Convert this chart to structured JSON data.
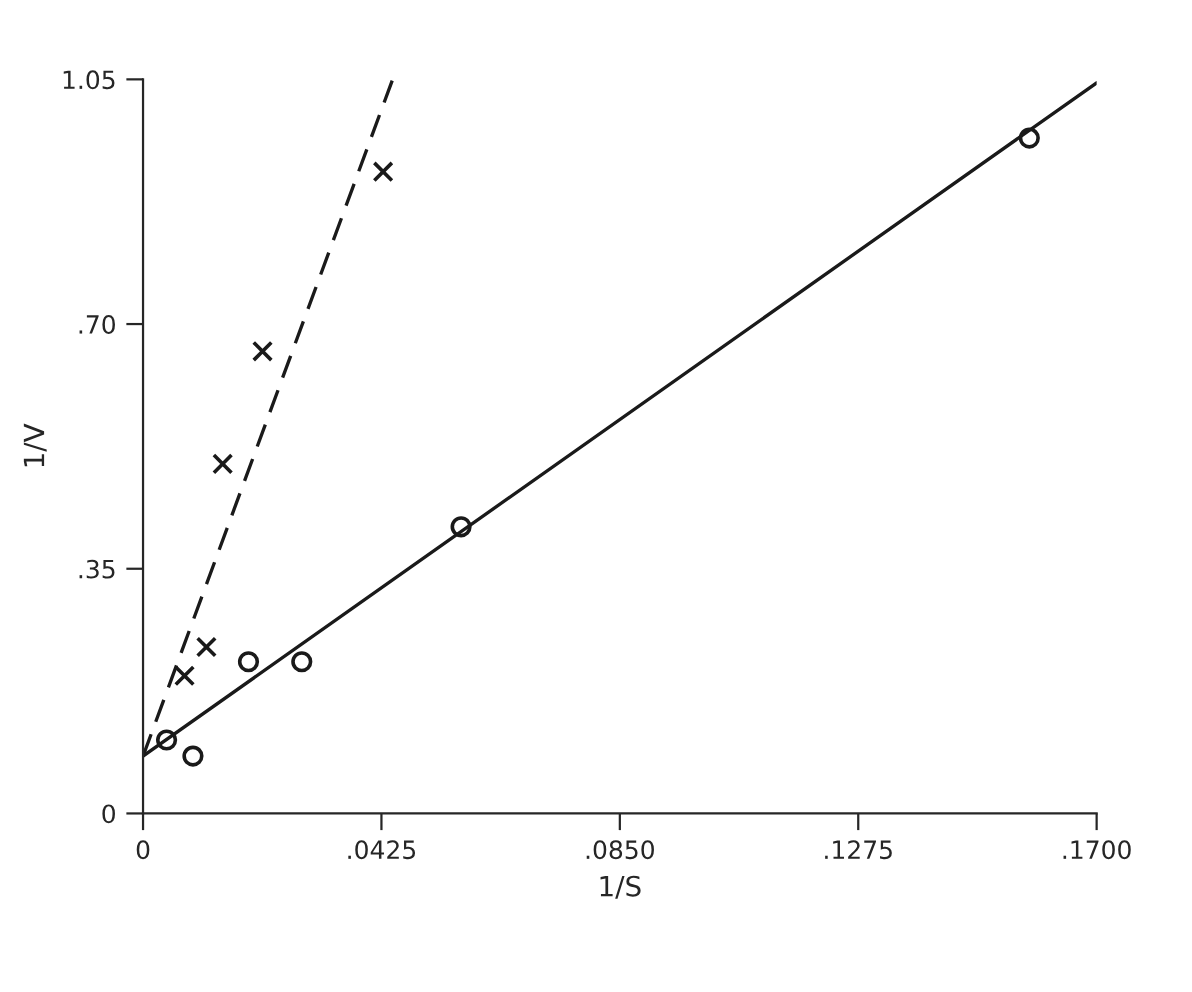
{
  "chart_data": {
    "type": "scatter",
    "xlabel": "1/S",
    "ylabel": "1/V",
    "xlim": [
      0,
      0.17
    ],
    "ylim": [
      0,
      1.05
    ],
    "xticks": [
      0,
      {
        "value": 0.0425,
        "label": ".0425"
      },
      {
        "value": 0.085,
        "label": ".0850"
      },
      {
        "value": 0.1275,
        "label": ".1275"
      },
      {
        "value": 0.17,
        "label": ".1700"
      }
    ],
    "yticks": [
      0,
      {
        "value": 0.35,
        "label": ".35"
      },
      {
        "value": 0.7,
        "label": ".70"
      },
      {
        "value": 1.05,
        "label": "1.05"
      }
    ],
    "grid": false,
    "legend": false,
    "series": [
      {
        "marker": "circle",
        "color": "#1a1a1a",
        "x": [
          0.0042,
          0.0089,
          0.0188,
          0.0283,
          0.0567,
          0.158
        ],
        "values": [
          0.105,
          0.082,
          0.217,
          0.217,
          0.41,
          0.966
        ]
      },
      {
        "marker": "cross",
        "color": "#1a1a1a",
        "x": [
          0.0074,
          0.0113,
          0.0142,
          0.0213,
          0.0428
        ],
        "values": [
          0.197,
          0.238,
          0.5,
          0.661,
          0.918
        ]
      },
      {
        "type": "line",
        "line_style": "solid",
        "color": "#1a1a1a",
        "x": [
          0,
          0.17
        ],
        "values": [
          0.082,
          1.045
        ]
      },
      {
        "type": "line",
        "line_style": "dashed",
        "color": "#1a1a1a",
        "x": [
          0,
          0.0445
        ],
        "values": [
          0.082,
          1.05
        ]
      }
    ]
  }
}
